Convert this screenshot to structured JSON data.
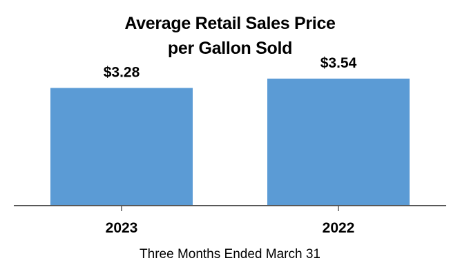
{
  "chart_data": {
    "type": "bar",
    "title_lines": [
      "Average Retail Sales Price",
      "per Gallon Sold"
    ],
    "categories": [
      "2023",
      "2022"
    ],
    "values": [
      3.28,
      3.54
    ],
    "value_labels": [
      "$3.28",
      "$3.54"
    ],
    "xlabel": "Three Months Ended March 31",
    "ylabel": "",
    "ylim": [
      0,
      4.0
    ],
    "grid": false,
    "legend": "none",
    "bar_color": "#5b9bd5",
    "axis_color": "#595959"
  }
}
